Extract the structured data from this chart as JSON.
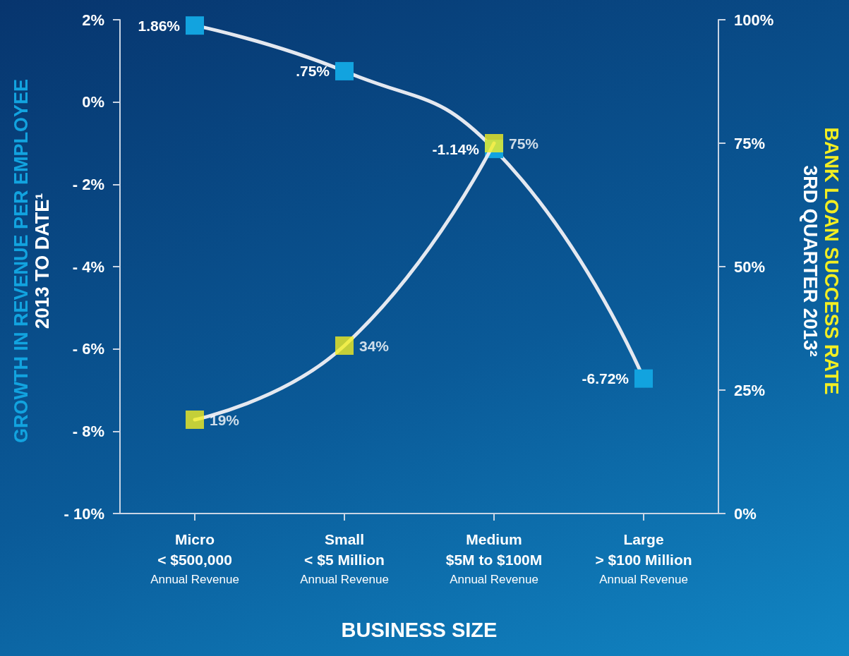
{
  "chart_data": {
    "type": "line",
    "categories": [
      "Micro\n< $500,000\nAnnual Revenue",
      "Small\n< $5 Million\nAnnual Revenue",
      "Medium\n$5M to $100M\nAnnual Revenue",
      "Large\n> $100 Million\nAnnual Revenue"
    ],
    "xlabel": "BUSINESS SIZE",
    "ylabel": "GROWTH IN REVENUE PER EMPLOYEE\n2013 TO DATE¹",
    "y2label": "BANK LOAN SUCCESS RATE\n3RD QUARTER 2013²",
    "series": [
      {
        "color": "#12a3df",
        "values": [
          1.86,
          0.75,
          -1.14,
          -6.72
        ],
        "value_labels": [
          "1.86%",
          ".75%",
          "-1.14%",
          "-6.72%"
        ]
      },
      {
        "color": "#f2ee22",
        "axis": "y2",
        "values": [
          19,
          34,
          75,
          null
        ],
        "value_labels": [
          "19%",
          "34%",
          "75%",
          null
        ]
      }
    ],
    "ylim": [
      -10,
      2
    ],
    "yticks": [
      {
        "value": -10,
        "label": "- 10%"
      },
      {
        "value": -8,
        "label": "- 8%"
      },
      {
        "value": -6,
        "label": "- 6%"
      },
      {
        "value": -4,
        "label": "- 4%"
      },
      {
        "value": -2,
        "label": "- 2%"
      },
      {
        "value": 0,
        "label": "0%"
      },
      {
        "value": 2,
        "label": "2%"
      }
    ],
    "y2lim": [
      0,
      100
    ],
    "y2ticks": [
      {
        "value": 0,
        "label": "0%"
      },
      {
        "value": 25,
        "label": "25%"
      },
      {
        "value": 50,
        "label": "50%"
      },
      {
        "value": 75,
        "label": "75%"
      },
      {
        "value": 100,
        "label": "100%"
      }
    ],
    "marker": "square",
    "grid": false
  }
}
